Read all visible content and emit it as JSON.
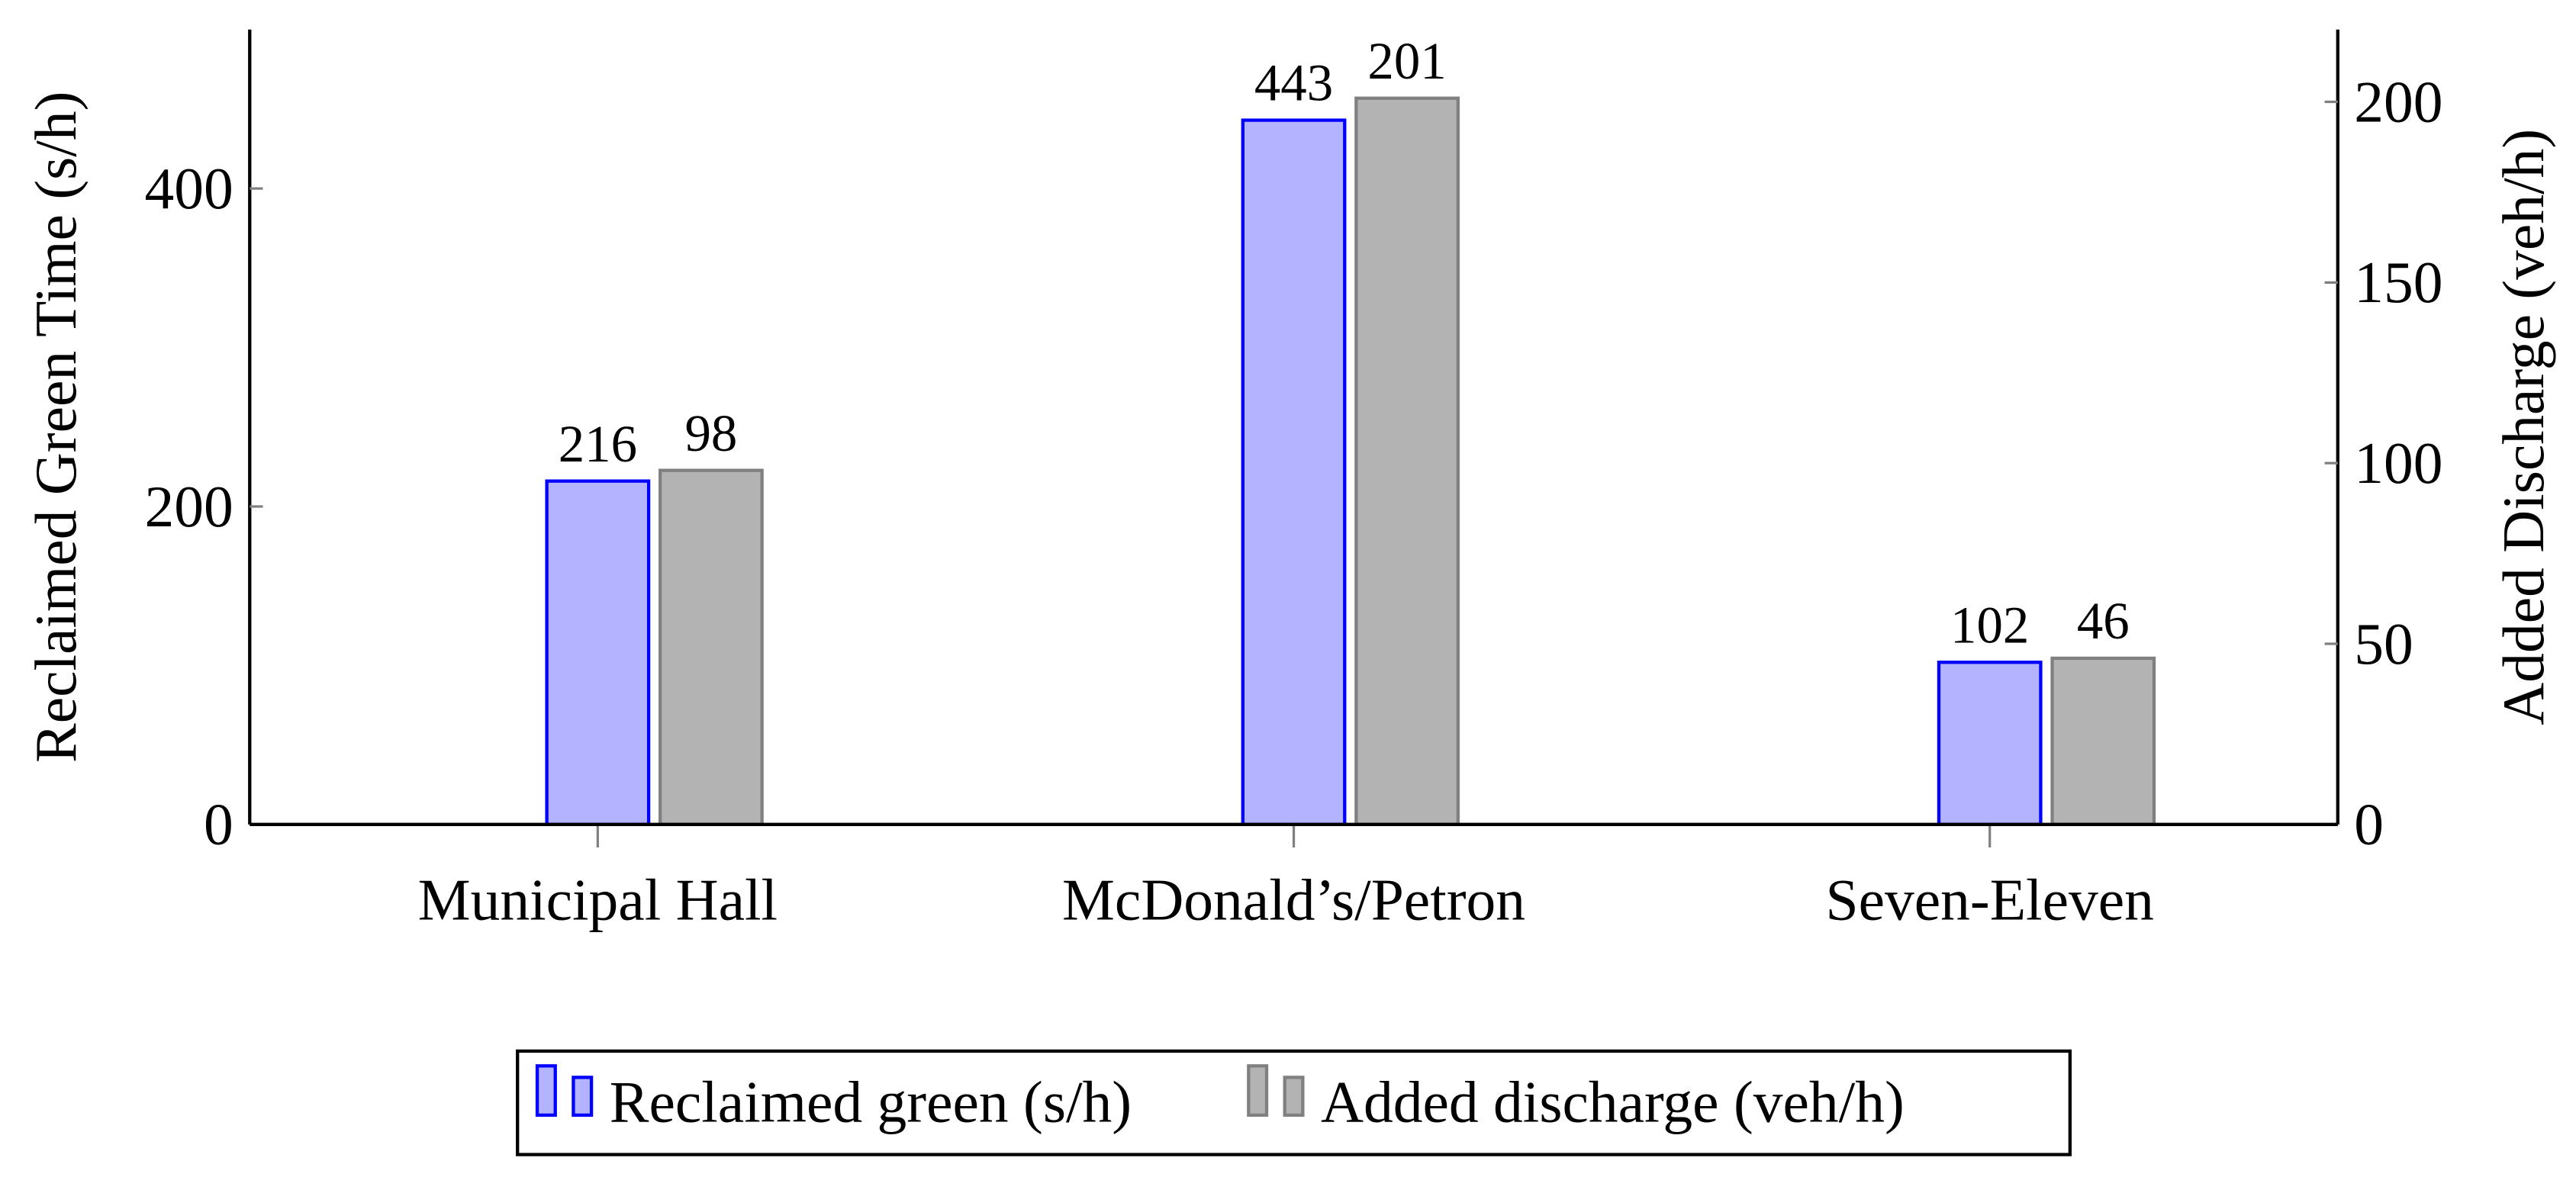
{
  "chart_data": {
    "type": "bar",
    "categories": [
      "Municipal Hall",
      "McDonald’s/Petron",
      "Seven-Eleven"
    ],
    "y_label": "Reclaimed Green Time (s/h)",
    "y2_label": "Added Discharge (veh/h)",
    "series": [
      {
        "name": "Reclaimed green (s/h)",
        "color": "#b3b3ff",
        "edge": "#0000ff",
        "values": [
          216,
          443,
          102
        ],
        "axis": "y"
      },
      {
        "name": "Added discharge (veh/h)",
        "color": "#b3b3b3",
        "edge": "#808080",
        "values": [
          98,
          201,
          46
        ],
        "axis": "y2"
      }
    ],
    "ylim": [
      0,
      500
    ],
    "yticks": [
      0,
      200,
      400
    ],
    "y2lim": [
      0,
      220
    ],
    "y2ticks": [
      0,
      50,
      100,
      150,
      200
    ],
    "legend": "bottom"
  }
}
